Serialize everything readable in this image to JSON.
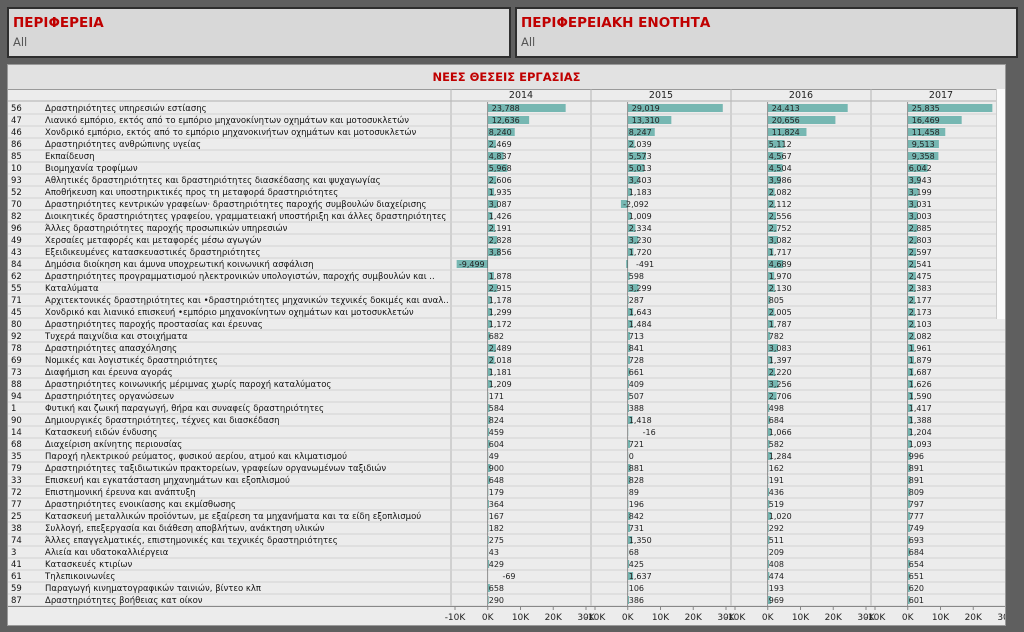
{
  "filters": [
    {
      "title": "ΠΕΡΙΦΕΡΕΙΑ",
      "value": "All"
    },
    {
      "title": "ΠΕΡΙΦΕΡΕΙΑΚΗ ΕΝΟΤΗΤΑ",
      "value": "All"
    }
  ],
  "chart_data": {
    "type": "bar",
    "orientation": "horizontal",
    "title": "ΝΕΕΣ ΘΕΣΕΙΣ ΕΡΓΑΣΙΑΣ",
    "years": [
      "2014",
      "2015",
      "2016",
      "2017"
    ],
    "xlim": [
      -10000,
      30000
    ],
    "xticks": [
      -10000,
      0,
      10000,
      20000,
      30000
    ],
    "xtick_labels": [
      "-10K",
      "0K",
      "10K",
      "20K",
      "30K"
    ],
    "bar_color": "#76b7b2",
    "rows": [
      {
        "code": "56",
        "name": "Δραστηριότητες υπηρεσιών εστίασης",
        "values": [
          23788,
          29019,
          24413,
          25835
        ]
      },
      {
        "code": "47",
        "name": "Λιανικό εμπόριο, εκτός από το εμπόριο μηχανοκίνητων οχημάτων και μοτοσυκλετών",
        "values": [
          12636,
          13310,
          20656,
          16469
        ]
      },
      {
        "code": "46",
        "name": "Χονδρικό εμπόριο, εκτός από το εμπόριο μηχανοκινήτων οχημάτων και μοτοσυκλετών",
        "values": [
          8240,
          8247,
          11824,
          11458
        ]
      },
      {
        "code": "86",
        "name": "Δραστηριότητες ανθρώπινης υγείας",
        "values": [
          2469,
          2039,
          5112,
          9513
        ]
      },
      {
        "code": "85",
        "name": "Εκπαίδευση",
        "values": [
          4837,
          5573,
          4567,
          9358
        ]
      },
      {
        "code": "10",
        "name": "Βιομηχανία τροφίμων",
        "values": [
          5968,
          5013,
          4504,
          6042
        ]
      },
      {
        "code": "93",
        "name": "Αθλητικές δραστηριότητες και δραστηριότητες διασκέδασης και ψυχαγωγίας",
        "values": [
          2606,
          3403,
          3986,
          3943
        ]
      },
      {
        "code": "52",
        "name": "Αποθήκευση και υποστηρικτικές προς τη μεταφορά δραστηριότητες",
        "values": [
          1935,
          1183,
          2082,
          3199
        ]
      },
      {
        "code": "70",
        "name": "Δραστηριότητες κεντρικών γραφείων· δραστηριότητες παροχής συμβουλών διαχείρισης",
        "values": [
          3087,
          -2092,
          2112,
          3031
        ]
      },
      {
        "code": "82",
        "name": "Διοικητικές δραστηριότητες γραφείου, γραμματειακή υποστήριξη και άλλες δραστηριότητες",
        "values": [
          1426,
          1009,
          2556,
          3003
        ]
      },
      {
        "code": "96",
        "name": "Άλλες δραστηριότητες παροχής προσωπικών υπηρεσιών",
        "values": [
          2191,
          2334,
          2752,
          2885
        ]
      },
      {
        "code": "49",
        "name": "Χερσαίες μεταφορές και μεταφορές μέσω αγωγών",
        "values": [
          2828,
          3230,
          3082,
          2803
        ]
      },
      {
        "code": "43",
        "name": "Εξειδικευμένες κατασκευαστικές δραστηριότητες",
        "values": [
          3856,
          1720,
          1717,
          2597
        ]
      },
      {
        "code": "84",
        "name": "Δημόσια διοίκηση και άμυνα υποχρεωτική κοινωνική ασφάλιση",
        "values": [
          -9499,
          -491,
          4689,
          2541
        ]
      },
      {
        "code": "62",
        "name": "Δραστηριότητες προγραμματισμού ηλεκτρονικών υπολογιστών, παροχής συμβουλών και ..",
        "values": [
          1878,
          598,
          1970,
          2475
        ]
      },
      {
        "code": "55",
        "name": "Καταλύματα",
        "values": [
          2915,
          3299,
          2130,
          2383
        ]
      },
      {
        "code": "71",
        "name": "Αρχιτεκτονικές δραστηριότητες και •δραστηριότητες μηχανικών τεχνικές δοκιμές και αναλ..",
        "values": [
          1178,
          287,
          805,
          2177
        ]
      },
      {
        "code": "45",
        "name": "Χονδρικό και λιανικό επισκευή •εμπόριο μηχανοκίνητων οχημάτων και μοτοσυκλετών",
        "values": [
          1299,
          1643,
          2005,
          2173
        ]
      },
      {
        "code": "80",
        "name": "Δραστηριότητες παροχής προστασίας και έρευνας",
        "values": [
          1172,
          1484,
          1787,
          2103
        ]
      },
      {
        "code": "92",
        "name": "Τυχερά παιχνίδια και στοιχήματα",
        "values": [
          682,
          713,
          782,
          2082
        ]
      },
      {
        "code": "78",
        "name": "Δραστηριότητες απασχόλησης",
        "values": [
          2489,
          841,
          3083,
          1961
        ]
      },
      {
        "code": "69",
        "name": "Νομικές και λογιστικές δραστηριότητες",
        "values": [
          2018,
          728,
          1397,
          1879
        ]
      },
      {
        "code": "73",
        "name": "Διαφήμιση και έρευνα αγοράς",
        "values": [
          1181,
          661,
          2220,
          1687
        ]
      },
      {
        "code": "88",
        "name": "Δραστηριότητες κοινωνικής μέριμνας χωρίς παροχή καταλύματος",
        "values": [
          1209,
          409,
          3256,
          1626
        ]
      },
      {
        "code": "94",
        "name": "Δραστηριότητες οργανώσεων",
        "values": [
          171,
          507,
          2706,
          1590
        ]
      },
      {
        "code": "1",
        "name": "Φυτική και ζωική παραγωγή, θήρα και συναφείς δραστηριότητες",
        "values": [
          584,
          388,
          498,
          1417
        ]
      },
      {
        "code": "90",
        "name": "Δημιουργικές δραστηριότητες, τέχνες και διασκέδαση",
        "values": [
          824,
          1418,
          684,
          1388
        ]
      },
      {
        "code": "14",
        "name": "Κατασκευή ειδών ένδυσης",
        "values": [
          459,
          -16,
          1066,
          1204
        ]
      },
      {
        "code": "68",
        "name": "Διαχείριση ακίνητης περιουσίας",
        "values": [
          604,
          721,
          582,
          1093
        ]
      },
      {
        "code": "35",
        "name": "Παροχή ηλεκτρικού ρεύματος, φυσικού αερίου, ατμού και κλιματισμού",
        "values": [
          49,
          0,
          1284,
          996
        ]
      },
      {
        "code": "79",
        "name": "Δραστηριότητες ταξιδιωτικών πρακτορείων, γραφείων οργανωμένων ταξιδιών",
        "values": [
          900,
          881,
          162,
          891
        ]
      },
      {
        "code": "33",
        "name": "Επισκευή και εγκατάσταση μηχανημάτων και εξοπλισμού",
        "values": [
          648,
          828,
          191,
          891
        ]
      },
      {
        "code": "72",
        "name": "Επιστημονική έρευνα και ανάπτυξη",
        "values": [
          179,
          89,
          436,
          809
        ]
      },
      {
        "code": "77",
        "name": "Δραστηριότητες ενοικίασης και εκμίσθωσης",
        "values": [
          364,
          196,
          519,
          797
        ]
      },
      {
        "code": "25",
        "name": "Κατασκευή μεταλλικών προϊόντων, με εξαίρεση τα μηχανήματα και τα είδη εξοπλισμού",
        "values": [
          167,
          842,
          1020,
          777
        ]
      },
      {
        "code": "38",
        "name": "Συλλογή, επεξεργασία και διάθεση αποβλήτων, ανάκτηση υλικών",
        "values": [
          182,
          731,
          292,
          749
        ]
      },
      {
        "code": "74",
        "name": "Άλλες επαγγελματικές, επιστημονικές και τεχνικές δραστηριότητες",
        "values": [
          275,
          1350,
          511,
          693
        ]
      },
      {
        "code": "3",
        "name": "Αλιεία και υδατοκαλλιέργεια",
        "values": [
          43,
          68,
          209,
          684
        ]
      },
      {
        "code": "41",
        "name": "Κατασκευές κτιρίων",
        "values": [
          429,
          425,
          408,
          654
        ]
      },
      {
        "code": "61",
        "name": "Τηλεπικοινωνίες",
        "values": [
          -69,
          1637,
          474,
          651
        ]
      },
      {
        "code": "59",
        "name": "Παραγωγή κινηματογραφικών ταινιών, βίντεο κλπ",
        "values": [
          658,
          106,
          193,
          620
        ]
      },
      {
        "code": "87",
        "name": "Δραστηριότητες βοήθειας κατ οίκον",
        "values": [
          290,
          386,
          969,
          601
        ]
      }
    ]
  }
}
